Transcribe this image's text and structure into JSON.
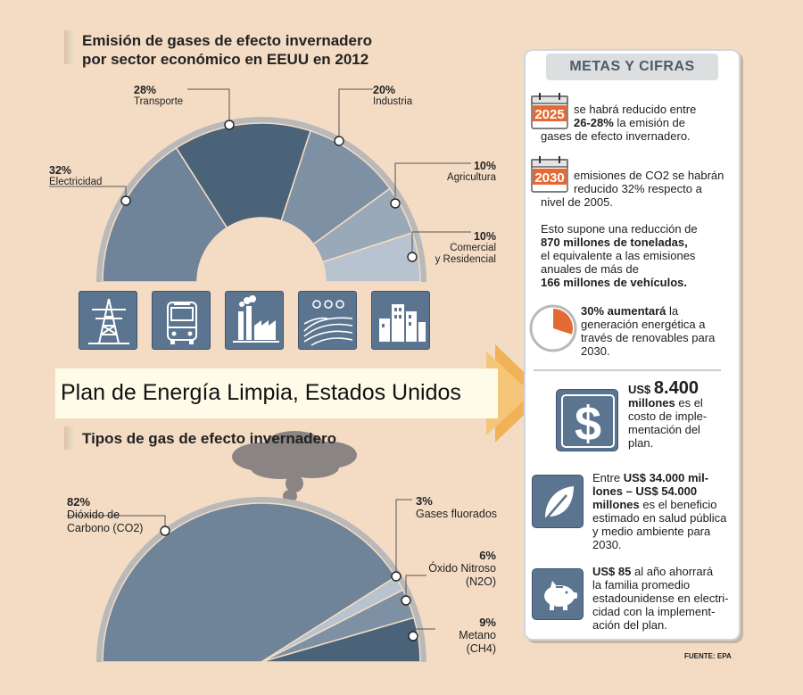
{
  "sector_chart": {
    "title_line1": "Emisión de gases de efecto invernadero",
    "title_line2": "por sector económico en EEUU en 2012",
    "slices": [
      {
        "name": "Electricidad",
        "pct": "32%",
        "value": 32,
        "color": "#6f8499"
      },
      {
        "name": "Transporte",
        "pct": "28%",
        "value": 28,
        "color": "#4a6379"
      },
      {
        "name": "Industria",
        "pct": "20%",
        "value": 20,
        "color": "#7e91a4"
      },
      {
        "name": "Agricultura",
        "pct": "10%",
        "value": 10,
        "color": "#9aa9b7"
      },
      {
        "name_line1": "Comercial",
        "name_line2": "y Residencial",
        "pct": "10%",
        "value": 10,
        "color": "#b7c3ce"
      }
    ],
    "icons": [
      "power-tower-icon",
      "bus-icon",
      "factory-icon",
      "farm-field-icon",
      "buildings-icon"
    ]
  },
  "banner": {
    "title": "Plan de Energía Limpia, Estados Unidos"
  },
  "gas_chart": {
    "title": "Tipos de gas de efecto invernadero",
    "slices": [
      {
        "pct": "82%",
        "name_line1": "Dióxido de",
        "name_line2": "Carbono (CO2)",
        "value": 82,
        "color": "#6f8499"
      },
      {
        "pct": "3%",
        "name_line1": "Gases fluorados",
        "name_line2": "",
        "value": 3,
        "color": "#b7c3ce"
      },
      {
        "pct": "6%",
        "name_line1": "Óxido Nitroso",
        "name_line2": "(N2O)",
        "value": 6,
        "color": "#7e91a4"
      },
      {
        "pct": "9%",
        "name_line1": "Metano",
        "name_line2": "(CH4)",
        "value": 9,
        "color": "#4a6379"
      }
    ]
  },
  "panel": {
    "header": "METAS Y CIFRAS",
    "goal_2025": {
      "year": "2025",
      "text_a": "se habrá reducido entre",
      "text_b_bold": "26-28%",
      "text_b": " la emisión de",
      "text_c": "gases de efecto invernadero."
    },
    "goal_2030": {
      "year": "2030",
      "text_a": "emisiones de CO2 se habrán",
      "text_b": "reducido 32% respecto a",
      "text_c": "nivel de 2005."
    },
    "reduction": {
      "line1": "Esto supone una reducción de",
      "line2_bold": "870 millones de toneladas,",
      "line3": "el equivalente a las emisiones",
      "line4": "anuales de más de",
      "line5_bold": "166 millones de vehículos."
    },
    "renewables": {
      "value": 30,
      "line1_bold": "30% aumentará",
      "line1": " la",
      "line2": "generación energética a",
      "line3": "través de renovables para",
      "line4": "2030."
    },
    "cost": {
      "prefix": "US$ ",
      "amount": "8.400",
      "line2_bold": "millones",
      "line2": " es el",
      "line3": "costo de imple-",
      "line4": "mentación del",
      "line5": "plan."
    },
    "benefit": {
      "line1": "Entre ",
      "line1_bold": "US$ 34.000 mil-",
      "line2_bold": "lones – US$ 54.000",
      "line3_bold": "millones",
      "line3": " es el beneficio",
      "line4": "estimado en salud pública",
      "line5": "y medio ambiente para",
      "line6": "2030."
    },
    "savings": {
      "line1_bold": "US$ 85",
      "line1": " al año ahorrará",
      "line2": "la familia promedio",
      "line3": "estadounidense en electri-",
      "line4": "cidad con la implement-",
      "line5": "ación del plan."
    }
  },
  "source": "FUENTE: EPA",
  "colors": {
    "background": "#f4dcc4",
    "accent_orange": "#f0b257",
    "slate": "#5b7590"
  }
}
